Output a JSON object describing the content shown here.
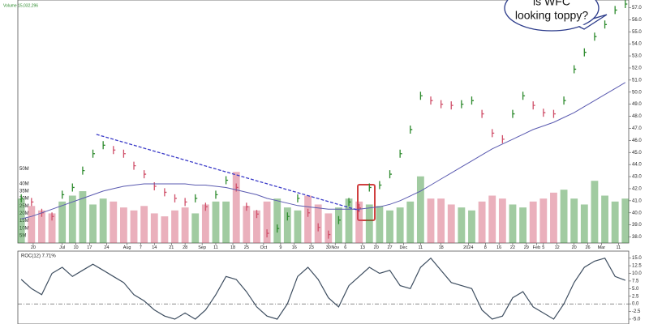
{
  "chart_data": [
    {
      "type": "stock",
      "legend": "Volume 15,032,296",
      "callout": [
        "is WFC",
        "looking toppy?"
      ],
      "x": [
        0,
        3,
        6,
        9,
        12,
        15,
        18,
        21,
        24,
        27,
        30,
        33,
        36,
        39,
        42,
        45,
        48,
        51,
        54,
        57,
        60,
        63,
        66,
        69,
        72,
        75,
        78,
        81,
        84,
        87,
        90,
        93,
        96,
        99,
        102,
        105,
        108,
        111,
        114,
        117,
        120,
        123,
        126,
        129,
        132,
        135,
        138,
        141,
        144,
        147,
        150,
        153,
        156,
        159,
        162,
        165,
        168,
        171,
        174,
        177
      ],
      "xlim": [
        -1,
        178
      ],
      "xticks": [
        {
          "value": 3.5,
          "label": "20"
        },
        {
          "value": 12,
          "label": "Jul"
        },
        {
          "value": 16,
          "label": "10"
        },
        {
          "value": 20,
          "label": "17"
        },
        {
          "value": 25,
          "label": "24"
        },
        {
          "value": 31,
          "label": "Aug"
        },
        {
          "value": 35,
          "label": "7"
        },
        {
          "value": 39,
          "label": "14"
        },
        {
          "value": 44,
          "label": "21"
        },
        {
          "value": 48,
          "label": "28"
        },
        {
          "value": 53,
          "label": "Sep"
        },
        {
          "value": 57,
          "label": "11"
        },
        {
          "value": 62,
          "label": "18"
        },
        {
          "value": 66,
          "label": "25"
        },
        {
          "value": 71,
          "label": "Oct"
        },
        {
          "value": 76,
          "label": "9"
        },
        {
          "value": 80,
          "label": "16"
        },
        {
          "value": 85,
          "label": "23"
        },
        {
          "value": 90,
          "label": "30"
        },
        {
          "value": 92,
          "label": "Nov"
        },
        {
          "value": 95,
          "label": "6"
        },
        {
          "value": 100,
          "label": "13"
        },
        {
          "value": 104,
          "label": "20"
        },
        {
          "value": 108,
          "label": "27"
        },
        {
          "value": 112,
          "label": "Dec"
        },
        {
          "value": 117,
          "label": "11"
        },
        {
          "value": 123,
          "label": "18"
        },
        {
          "value": 131,
          "label": "2024"
        },
        {
          "value": 136,
          "label": "8"
        },
        {
          "value": 140,
          "label": "16"
        },
        {
          "value": 144,
          "label": "22"
        },
        {
          "value": 148,
          "label": "29"
        },
        {
          "value": 151,
          "label": "Feb"
        },
        {
          "value": 153,
          "label": "5"
        },
        {
          "value": 157,
          "label": "12"
        },
        {
          "value": 162,
          "label": "20"
        },
        {
          "value": 166,
          "label": "26"
        },
        {
          "value": 170,
          "label": "Mar"
        },
        {
          "value": 175,
          "label": "11"
        }
      ],
      "ylim": [
        37.5,
        57.5
      ],
      "yticks": [
        {
          "value": 38,
          "label": "38.0"
        },
        {
          "value": 39,
          "label": "39.0"
        },
        {
          "value": 40,
          "label": "40.0"
        },
        {
          "value": 41,
          "label": "41.0"
        },
        {
          "value": 42,
          "label": "42.0"
        },
        {
          "value": 43,
          "label": "43.0"
        },
        {
          "value": 44,
          "label": "44.0"
        },
        {
          "value": 45,
          "label": "45.0"
        },
        {
          "value": 46,
          "label": "46.0"
        },
        {
          "value": 47,
          "label": "47.0"
        },
        {
          "value": 48,
          "label": "48.0"
        },
        {
          "value": 49,
          "label": "49.0"
        },
        {
          "value": 50,
          "label": "50.0"
        },
        {
          "value": 51,
          "label": "51.0"
        },
        {
          "value": 52,
          "label": "52.0"
        },
        {
          "value": 53,
          "label": "53.0"
        },
        {
          "value": 54,
          "label": "54.0"
        },
        {
          "value": 55,
          "label": "55.0"
        },
        {
          "value": 56,
          "label": "56.0"
        },
        {
          "value": 57,
          "label": "57.0"
        }
      ],
      "y2lim": [
        0,
        163
      ],
      "y2ticks": [
        {
          "value": 5,
          "label": "5M"
        },
        {
          "value": 10,
          "label": "10M"
        },
        {
          "value": 15,
          "label": "15M"
        },
        {
          "value": 20,
          "label": "20M"
        },
        {
          "value": 25,
          "label": "25M"
        },
        {
          "value": 30,
          "label": "30M"
        },
        {
          "value": 35,
          "label": "35M"
        },
        {
          "value": 40,
          "label": "40M"
        },
        {
          "value": 50,
          "label": "50M"
        }
      ],
      "up_color": "#2e8b2e",
      "down_color": "#d0506a",
      "series": [
        {
          "type": "price",
          "values": [
            41.2,
            40.9,
            40.0,
            39.7,
            41.5,
            42.1,
            43.5,
            44.9,
            45.6,
            45.2,
            44.9,
            43.9,
            43.2,
            42.2,
            41.7,
            41.2,
            40.9,
            41.2,
            40.5,
            41.5,
            42.7,
            42.1,
            40.5,
            39.9,
            38.3,
            38.7,
            39.7,
            41.2,
            40.0,
            38.8,
            38.2,
            39.4,
            40.9,
            40.4,
            42.1,
            42.3,
            43.2,
            44.9,
            46.9,
            49.7,
            49.3,
            49.0,
            48.9,
            49.0,
            49.3,
            48.2,
            46.6,
            46.1,
            48.2,
            49.7,
            48.9,
            48.3,
            48.2,
            49.3,
            51.9,
            53.3,
            54.6,
            55.6,
            56.8,
            57.3
          ]
        },
        {
          "type": "volume",
          "axis": "y2",
          "values": [
            30,
            25,
            22,
            20,
            28,
            32,
            35,
            26,
            30,
            28,
            24,
            22,
            25,
            20,
            18,
            22,
            24,
            20,
            26,
            28,
            28,
            48,
            25,
            22,
            28,
            30,
            24,
            22,
            32,
            26,
            20,
            24,
            30,
            28,
            26,
            25,
            22,
            24,
            28,
            45,
            30,
            30,
            26,
            24,
            22,
            28,
            32,
            30,
            26,
            24,
            28,
            30,
            34,
            36,
            30,
            26,
            42,
            32,
            28,
            30
          ]
        },
        {
          "type": "line",
          "color": "#5a5ab0",
          "values": [
            39.5,
            39.7,
            40.0,
            40.3,
            40.6,
            40.9,
            41.2,
            41.5,
            41.8,
            42.0,
            42.2,
            42.3,
            42.4,
            42.4,
            42.4,
            42.4,
            42.4,
            42.3,
            42.3,
            42.2,
            42.1,
            41.9,
            41.7,
            41.5,
            41.2,
            41.0,
            40.8,
            40.6,
            40.5,
            40.4,
            40.3,
            40.3,
            40.3,
            40.3,
            40.4,
            40.5,
            40.7,
            41.0,
            41.4,
            41.8,
            42.3,
            42.8,
            43.3,
            43.8,
            44.3,
            44.8,
            45.3,
            45.7,
            46.1,
            46.5,
            46.9,
            47.2,
            47.5,
            47.9,
            48.3,
            48.8,
            49.3,
            49.8,
            50.3,
            50.8
          ]
        },
        {
          "type": "trendline",
          "color": "#3a3ac8",
          "x": [
            22,
            99
          ],
          "values": [
            46.5,
            40.2
          ]
        }
      ]
    },
    {
      "type": "line",
      "title": "ROC(12) 7.71%",
      "x": [
        0,
        3,
        6,
        9,
        12,
        15,
        18,
        21,
        24,
        27,
        30,
        33,
        36,
        39,
        42,
        45,
        48,
        51,
        54,
        57,
        60,
        63,
        66,
        69,
        72,
        75,
        78,
        81,
        84,
        87,
        90,
        93,
        96,
        99,
        102,
        105,
        108,
        111,
        114,
        117,
        120,
        123,
        126,
        129,
        132,
        135,
        138,
        141,
        144,
        147,
        150,
        153,
        156,
        159,
        162,
        165,
        168,
        171,
        174,
        177
      ],
      "xlim": [
        -1,
        178
      ],
      "ylim": [
        -6.6,
        17.3
      ],
      "yticks": [
        {
          "value": -5,
          "label": "-5.0"
        },
        {
          "value": -2.5,
          "label": "-2.5"
        },
        {
          "value": 0,
          "label": "0.0"
        },
        {
          "value": 2.5,
          "label": "2.5"
        },
        {
          "value": 5,
          "label": "5.0"
        },
        {
          "value": 7.5,
          "label": "7.5"
        },
        {
          "value": 10,
          "label": "10.0"
        },
        {
          "value": 12.5,
          "label": "12.5"
        },
        {
          "value": 15,
          "label": "15.0"
        }
      ],
      "zero_line": true,
      "series": [
        {
          "color": "#3e4e60",
          "values": [
            8,
            5,
            3,
            10,
            12,
            9,
            11,
            13,
            11,
            9,
            7,
            3,
            1,
            -2,
            -4,
            -5,
            -3,
            -5,
            -2,
            3,
            9,
            8,
            4,
            -1,
            -4,
            -5,
            0,
            9,
            12,
            8,
            2,
            -1,
            6,
            9,
            12,
            10,
            11,
            6,
            5,
            12,
            15,
            11,
            7,
            6,
            5,
            -2,
            -5,
            -4,
            2,
            4,
            -1,
            -3,
            -5,
            0,
            7,
            12,
            14,
            15,
            9,
            7.71
          ]
        }
      ]
    }
  ]
}
